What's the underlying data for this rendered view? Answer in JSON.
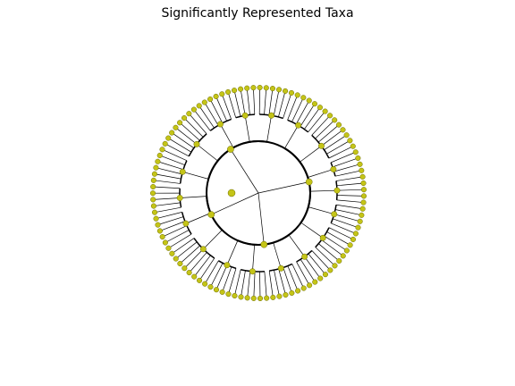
{
  "chart_data": {
    "type": "tree",
    "layout": "circular-cladogram",
    "title": "Significantly Represented Taxa",
    "root": {
      "label": "",
      "significant": true,
      "children": [
        {
          "label": "",
          "children": [
            {
              "label": "",
              "children": [
                {
                  "label": ""
                },
                {
                  "label": ""
                },
                {
                  "label": ""
                },
                {
                  "label": ""
                },
                {
                  "label": ""
                },
                {
                  "label": ""
                }
              ]
            },
            {
              "label": "",
              "children": [
                {
                  "label": ""
                },
                {
                  "label": ""
                },
                {
                  "label": ""
                },
                {
                  "label": ""
                },
                {
                  "label": ""
                },
                {
                  "label": ""
                },
                {
                  "label": ""
                }
              ]
            },
            {
              "label": "",
              "children": [
                {
                  "label": ""
                },
                {
                  "label": ""
                },
                {
                  "label": ""
                },
                {
                  "label": ""
                }
              ]
            },
            {
              "label": "",
              "children": [
                {
                  "label": ""
                },
                {
                  "label": ""
                },
                {
                  "label": ""
                },
                {
                  "label": ""
                },
                {
                  "label": ""
                }
              ]
            },
            {
              "label": "",
              "children": [
                {
                  "label": ""
                },
                {
                  "label": ""
                },
                {
                  "label": ""
                },
                {
                  "label": ""
                },
                {
                  "label": ""
                }
              ]
            },
            {
              "label": "",
              "children": [
                {
                  "label": ""
                },
                {
                  "label": ""
                },
                {
                  "label": ""
                },
                {
                  "label": ""
                },
                {
                  "label": ""
                },
                {
                  "label": ""
                }
              ]
            }
          ]
        },
        {
          "label": "",
          "children": [
            {
              "label": "",
              "children": [
                {
                  "label": ""
                },
                {
                  "label": ""
                },
                {
                  "label": ""
                },
                {
                  "label": ""
                },
                {
                  "label": ""
                }
              ]
            },
            {
              "label": "",
              "children": [
                {
                  "label": ""
                },
                {
                  "label": ""
                },
                {
                  "label": ""
                },
                {
                  "label": ""
                },
                {
                  "label": ""
                },
                {
                  "label": ""
                }
              ]
            },
            {
              "label": "",
              "children": [
                {
                  "label": ""
                },
                {
                  "label": ""
                },
                {
                  "label": ""
                },
                {
                  "label": ""
                },
                {
                  "label": ""
                },
                {
                  "label": ""
                }
              ]
            },
            {
              "label": "",
              "children": [
                {
                  "label": ""
                },
                {
                  "label": ""
                },
                {
                  "label": ""
                },
                {
                  "label": ""
                },
                {
                  "label": ""
                }
              ]
            }
          ]
        },
        {
          "label": "",
          "children": [
            {
              "label": "",
              "children": [
                {
                  "label": ""
                },
                {
                  "label": ""
                },
                {
                  "label": ""
                },
                {
                  "label": ""
                },
                {
                  "label": ""
                },
                {
                  "label": ""
                },
                {
                  "label": ""
                }
              ]
            },
            {
              "label": "",
              "children": [
                {
                  "label": ""
                },
                {
                  "label": ""
                },
                {
                  "label": ""
                },
                {
                  "label": ""
                },
                {
                  "label": ""
                },
                {
                  "label": ""
                }
              ]
            },
            {
              "label": "",
              "children": [
                {
                  "label": ""
                },
                {
                  "label": ""
                },
                {
                  "label": ""
                },
                {
                  "label": ""
                },
                {
                  "label": ""
                }
              ]
            }
          ]
        },
        {
          "label": "",
          "children": [
            {
              "label": "",
              "children": [
                {
                  "label": ""
                },
                {
                  "label": ""
                },
                {
                  "label": ""
                },
                {
                  "label": ""
                },
                {
                  "label": ""
                },
                {
                  "label": ""
                }
              ]
            },
            {
              "label": "",
              "children": [
                {
                  "label": ""
                },
                {
                  "label": ""
                },
                {
                  "label": ""
                },
                {
                  "label": ""
                },
                {
                  "label": ""
                },
                {
                  "label": ""
                },
                {
                  "label": ""
                }
              ]
            },
            {
              "label": "",
              "children": [
                {
                  "label": ""
                },
                {
                  "label": ""
                },
                {
                  "label": ""
                },
                {
                  "label": ""
                },
                {
                  "label": ""
                },
                {
                  "label": ""
                }
              ]
            },
            {
              "label": "",
              "children": [
                {
                  "label": ""
                },
                {
                  "label": ""
                },
                {
                  "label": ""
                },
                {
                  "label": ""
                },
                {
                  "label": ""
                }
              ]
            },
            {
              "label": "",
              "children": [
                {
                  "label": ""
                },
                {
                  "label": ""
                },
                {
                  "label": ""
                },
                {
                  "label": ""
                },
                {
                  "label": ""
                },
                {
                  "label": ""
                }
              ]
            }
          ]
        }
      ]
    },
    "node_marker": "circle",
    "node_color": "#c4c417",
    "node_edge_color": "#6b6b00",
    "edge_color": "#000000",
    "grid": false,
    "legend": "none",
    "axes": "hidden"
  }
}
